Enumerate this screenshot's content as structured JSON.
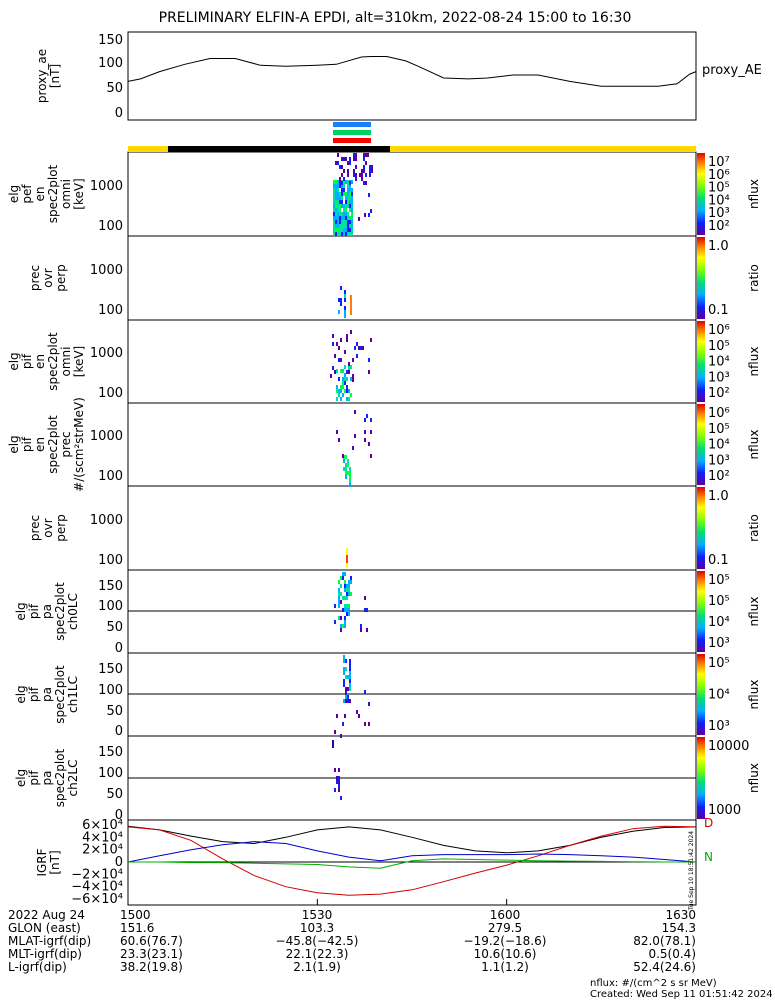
{
  "title": "PRELIMINARY ELFIN-A EPDI, alt=310km, 2022-08-24 15:00 to 16:30",
  "colors": {
    "black": "#000000",
    "red": "#d00000",
    "blue": "#0000cc",
    "green": "#00b000",
    "yellow": "#ffd800"
  },
  "chart_data": [
    {
      "type": "line",
      "panel": "proxy_ae",
      "ylabel_lines": [
        "proxy_ae",
        "[nT]"
      ],
      "yticks": [
        "0",
        "50",
        "100",
        "150"
      ],
      "ylim": [
        -10,
        160
      ],
      "legend": "proxy_AE",
      "x": [
        0,
        2,
        5,
        9,
        13,
        17,
        21,
        25,
        30,
        33,
        37,
        38.5,
        41,
        44,
        46,
        50,
        54,
        57,
        61,
        65,
        70,
        75,
        80,
        84,
        87,
        89,
        90
      ],
      "values": [
        65,
        70,
        85,
        100,
        112,
        112,
        98,
        96,
        98,
        100,
        115,
        116,
        116,
        107,
        96,
        72,
        70,
        72,
        78,
        78,
        65,
        55,
        55,
        55,
        60,
        80,
        85
      ]
    },
    {
      "type": "heatmap",
      "panel": "elf_pef_en_spec2plot_omni",
      "ylabel_lines": [
        "elg",
        "pef",
        "en",
        "spec2plot",
        "omni",
        "[keV]"
      ],
      "yticks": [
        "100",
        "1000"
      ],
      "colorbar_label": "nflux",
      "colorbar_ticks": [
        "10²",
        "10³",
        "10⁴",
        "10⁵",
        "10⁶",
        "10⁷"
      ]
    },
    {
      "type": "heatmap",
      "panel": "prec_ovr_perp_1",
      "ylabel_lines": [
        "prec",
        "ovr",
        "perp"
      ],
      "yticks": [
        "100",
        "1000"
      ],
      "colorbar_label": "ratio",
      "colorbar_ticks": [
        "0.1",
        "1.0"
      ]
    },
    {
      "type": "heatmap",
      "panel": "elf_pif_en_spec2plot_omni",
      "ylabel_lines": [
        "elg",
        "pif",
        "en",
        "spec2plot",
        "omni",
        "[keV]"
      ],
      "yticks": [
        "100",
        "1000"
      ],
      "colorbar_label": "nflux",
      "colorbar_ticks": [
        "10²",
        "10³",
        "10⁴",
        "10⁵",
        "10⁶"
      ]
    },
    {
      "type": "heatmap",
      "panel": "elf_pif_en_spec2plot_prec",
      "ylabel_lines": [
        "elg",
        "pif",
        "en",
        "spec2plot",
        "prec",
        "#/(scm²strMeV)"
      ],
      "yticks": [
        "100",
        "1000"
      ],
      "colorbar_label": "nflux",
      "colorbar_ticks": [
        "10²",
        "10³",
        "10⁴",
        "10⁵",
        "10⁶"
      ]
    },
    {
      "type": "heatmap",
      "panel": "prec_ovr_perp_2",
      "ylabel_lines": [
        "prec",
        "ovr",
        "perp"
      ],
      "yticks": [
        "100",
        "1000"
      ],
      "colorbar_label": "ratio",
      "colorbar_ticks": [
        "0.1",
        "1.0"
      ]
    },
    {
      "type": "heatmap",
      "panel": "pa_ch0LC",
      "ylabel_lines": [
        "elg",
        "pif",
        "pa",
        "spec2plot",
        "ch0LC"
      ],
      "yticks": [
        "0",
        "50",
        "100",
        "150"
      ],
      "colorbar_label": "nflux",
      "colorbar_ticks": [
        "10³",
        "10⁴",
        "10⁵",
        "10⁵"
      ]
    },
    {
      "type": "heatmap",
      "panel": "pa_ch1LC",
      "ylabel_lines": [
        "elg",
        "pif",
        "pa",
        "spec2plot",
        "ch1LC"
      ],
      "yticks": [
        "0",
        "50",
        "100",
        "150"
      ],
      "colorbar_label": "nflux",
      "colorbar_ticks": [
        "10³",
        "10⁴",
        "10⁵"
      ]
    },
    {
      "type": "heatmap",
      "panel": "pa_ch2LC",
      "ylabel_lines": [
        "elg",
        "pif",
        "pa",
        "spec2plot",
        "ch2LC"
      ],
      "yticks": [
        "0",
        "50",
        "100",
        "150"
      ],
      "colorbar_label": "nflux",
      "colorbar_ticks": [
        "1000",
        "10000"
      ]
    },
    {
      "type": "line",
      "panel": "igrf",
      "ylabel_lines": [
        "IGRF",
        "[nT]"
      ],
      "yticks": [
        "−6×10⁴",
        "−4×10⁴",
        "−2×10⁴",
        "0",
        "2×10⁴",
        "4×10⁴",
        "6×10⁴"
      ],
      "ylim": [
        -60000,
        60000
      ],
      "legend_letters": [
        "D",
        "N"
      ],
      "x": [
        0,
        5,
        10,
        15,
        20,
        25,
        30,
        35,
        40,
        45,
        50,
        55,
        60,
        65,
        70,
        75,
        80,
        85,
        90
      ],
      "series": [
        {
          "name": "black",
          "values": [
            58000,
            52000,
            42000,
            33000,
            30000,
            40000,
            52000,
            57000,
            52000,
            40000,
            27000,
            18000,
            15000,
            18000,
            27000,
            40000,
            50000,
            56000,
            57000
          ]
        },
        {
          "name": "red",
          "values": [
            57000,
            52000,
            35000,
            5000,
            -22000,
            -40000,
            -50000,
            -54000,
            -52000,
            -45000,
            -32000,
            -18000,
            -5000,
            10000,
            27000,
            42000,
            54000,
            58000,
            57000
          ]
        },
        {
          "name": "blue",
          "values": [
            0,
            10000,
            20000,
            28000,
            33000,
            30000,
            18000,
            8000,
            2000,
            10000,
            12000,
            12000,
            12000,
            13000,
            12000,
            10000,
            8000,
            4000,
            0
          ]
        },
        {
          "name": "green",
          "values": [
            0,
            0,
            -1000,
            -1000,
            -2000,
            -3000,
            -4000,
            -8000,
            -10000,
            2000,
            5000,
            4000,
            3000,
            2000,
            1500,
            1000,
            500,
            0,
            0
          ]
        }
      ]
    }
  ],
  "xticks": [
    "1500",
    "1530",
    "1600",
    "1630"
  ],
  "footer_rows": [
    {
      "label": "2022 Aug 24",
      "values": [
        "1500",
        "1530",
        "1600",
        "1630"
      ]
    },
    {
      "label": "GLON (east)",
      "values": [
        "151.6",
        "103.3",
        "279.5",
        "154.3"
      ]
    },
    {
      "label": "MLAT-igrf(dip)",
      "values": [
        "60.6(76.7)",
        "−45.8(−42.5)",
        "−19.2(−18.6)",
        "82.0(78.1)"
      ]
    },
    {
      "label": "MLT-igrf(dip)",
      "values": [
        "23.3(23.1)",
        "22.1(22.3)",
        "10.6(10.6)",
        "0.5(0.4)"
      ]
    },
    {
      "label": "L-igrf(dip)",
      "values": [
        "38.2(19.8)",
        "2.1(1.9)",
        "1.1(1.2)",
        "52.4(24.6)"
      ]
    }
  ],
  "nflux_note": "nflux: #/(cm^2 s sr MeV)",
  "created": "Created: Wed Sep 11 01:51:42 2024",
  "stamp": "Tue Sep 10 18:51:42 2024"
}
